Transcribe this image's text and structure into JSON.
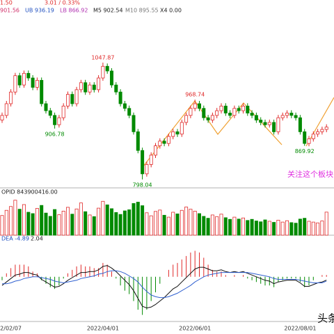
{
  "header": {
    "line1": [
      "1.50",
      "3.01 / 0.33%"
    ],
    "line2": [
      "901.56",
      "UB 936.19",
      "LB 866.92",
      "M5 902.54",
      "M10 895.55",
      "X4 0.00"
    ]
  },
  "chart_data": [
    {
      "type": "candlestick",
      "up_color": "#e02828",
      "down_color": "#008a00",
      "x": [
        null,
        null,
        "2/02/07",
        null,
        null,
        null,
        null,
        null,
        null,
        null,
        null,
        null,
        null,
        null,
        null,
        null,
        null,
        null,
        null,
        null,
        null,
        null,
        null,
        "2022/04/01",
        null,
        null,
        null,
        null,
        null,
        null,
        null,
        null,
        null,
        null,
        null,
        null,
        null,
        null,
        null,
        null,
        null,
        null,
        null,
        null,
        "2022/06/01",
        null,
        null,
        null,
        null,
        null,
        null,
        null,
        null,
        null,
        null,
        null,
        null,
        null,
        null,
        null,
        null,
        null,
        null,
        null,
        null,
        null,
        null,
        null,
        "2022/08/01",
        null,
        null,
        null,
        null,
        null,
        null
      ],
      "open": [
        925,
        935,
        960,
        985,
        1020,
        1000,
        1025,
        1015,
        995,
        1010,
        960,
        945,
        935,
        915,
        930,
        955,
        980,
        960,
        990,
        1005,
        985,
        1000,
        990,
        1015,
        1040,
        1030,
        1000,
        985,
        960,
        950,
        935,
        900,
        860,
        810,
        830,
        850,
        870,
        880,
        875,
        890,
        900,
        895,
        920,
        935,
        950,
        960,
        950,
        930,
        925,
        935,
        945,
        955,
        940,
        935,
        950,
        945,
        955,
        940,
        935,
        925,
        920,
        915,
        920,
        900,
        930,
        935,
        940,
        935,
        930,
        900,
        875,
        885,
        895,
        900,
        905
      ],
      "high": [
        941,
        966,
        991,
        1026,
        1026,
        1031,
        1031,
        1021,
        1016,
        1016,
        966,
        951,
        941,
        936,
        961,
        986,
        986,
        996,
        1011,
        1011,
        1006,
        1006,
        1021,
        1047.87,
        1046,
        1036,
        1006,
        991,
        966,
        956,
        941,
        906,
        866,
        836,
        856,
        876,
        886,
        886,
        896,
        906,
        906,
        926,
        941,
        956,
        968.74,
        966,
        956,
        936,
        941,
        951,
        961,
        961,
        946,
        956,
        956,
        961,
        961,
        946,
        941,
        931,
        926,
        926,
        926,
        936,
        941,
        946,
        946,
        941,
        936,
        906,
        891,
        901,
        906,
        911,
        916
      ],
      "low": [
        919,
        929,
        954,
        979,
        994,
        994,
        1009,
        989,
        989,
        954,
        939,
        929,
        906.78,
        909,
        924,
        949,
        954,
        954,
        984,
        979,
        979,
        984,
        984,
        1009,
        1024,
        994,
        979,
        954,
        944,
        929,
        894,
        854,
        798.04,
        804,
        824,
        844,
        864,
        869,
        869,
        884,
        889,
        889,
        914,
        929,
        944,
        944,
        924,
        919,
        919,
        929,
        939,
        934,
        929,
        929,
        939,
        939,
        934,
        929,
        919,
        914,
        909,
        909,
        894,
        894,
        924,
        929,
        929,
        924,
        894,
        869.92,
        869,
        879,
        889,
        894,
        899
      ],
      "close": [
        935,
        960,
        985,
        1020,
        1000,
        1025,
        1015,
        995,
        1010,
        960,
        945,
        935,
        915,
        930,
        955,
        980,
        960,
        990,
        1005,
        985,
        1000,
        990,
        1015,
        1040,
        1030,
        1000,
        985,
        960,
        950,
        935,
        900,
        860,
        810,
        830,
        850,
        870,
        880,
        875,
        890,
        900,
        895,
        920,
        935,
        950,
        960,
        950,
        930,
        925,
        935,
        945,
        955,
        940,
        935,
        950,
        945,
        955,
        940,
        935,
        925,
        920,
        915,
        920,
        900,
        930,
        935,
        940,
        935,
        930,
        900,
        875,
        885,
        895,
        900,
        905,
        910
      ],
      "ylim": [
        780,
        1152
      ],
      "annotations": [
        "1047.87",
        "906.78",
        "968.74",
        "869.92",
        "798.04"
      ],
      "note": "关注这个板块"
    },
    {
      "type": "volume",
      "title": "OPID 843900416.00",
      "ylim": [
        0,
        1400000000
      ],
      "values": [
        720000000.0,
        910000000.0,
        1050000000.0,
        1280000000.0,
        950000000.0,
        1120000000.0,
        840000000.0,
        790000000.0,
        980000000.0,
        1090000000.0,
        810000000.0,
        690000000.0,
        940000000.0,
        750000000.0,
        880000000.0,
        1020000000.0,
        770000000.0,
        960000000.0,
        1180000000.0,
        860000000.0,
        740000000.0,
        680000000.0,
        990000000.0,
        1240000000.0,
        1110000000.0,
        970000000.0,
        830000000.0,
        760000000.0,
        890000000.0,
        930000000.0,
        1160000000.0,
        1210000000.0,
        1080000000.0,
        820000000.0,
        710000000.0,
        870000000.0,
        920000000.0,
        730000000.0,
        660000000.0,
        840000000.0,
        780000000.0,
        910000000.0,
        1030000000.0,
        950000000.0,
        880000000.0,
        790000000.0,
        690000000.0,
        620000000.0,
        740000000.0,
        680000000.0,
        770000000.0,
        640000000.0,
        580000000.0,
        660000000.0,
        590000000.0,
        630000000.0,
        540000000.0,
        580000000.0,
        520000000.0,
        490000000.0,
        560000000.0,
        510000000.0,
        470000000.0,
        550000000.0,
        480000000.0,
        530000000.0,
        460000000.0,
        440000000.0,
        590000000.0,
        620000000.0,
        510000000.0,
        480000000.0,
        450000000.0,
        520000000.0,
        843900000.0
      ]
    },
    {
      "type": "macd",
      "labels": [
        "DEA -4.89",
        "2.04"
      ],
      "ylim": [
        -50,
        40
      ],
      "dif_color": "#111111",
      "dea_color": "#3060d0",
      "macd": [
        -4,
        4,
        10,
        14,
        14,
        14,
        12,
        6,
        4,
        -4,
        -8,
        -12,
        -14,
        -10,
        -2,
        4,
        8,
        12,
        14,
        12,
        12,
        10,
        10,
        16,
        14,
        6,
        -2,
        -10,
        -16,
        -20,
        -28,
        -38,
        -44,
        -38,
        -28,
        -18,
        -8,
        0,
        8,
        14,
        16,
        20,
        24,
        28,
        30,
        28,
        22,
        14,
        8,
        6,
        6,
        2,
        0,
        2,
        0,
        2,
        -2,
        -4,
        -6,
        -8,
        -10,
        -10,
        -12,
        -6,
        -4,
        -2,
        -2,
        -2,
        -6,
        -12,
        -10,
        -4,
        0,
        2,
        2.04
      ],
      "dif": [
        -10,
        -6,
        -2,
        2,
        3,
        5,
        5,
        3,
        2,
        -3,
        -6,
        -9,
        -12,
        -11,
        -8,
        -4,
        -1,
        2,
        5,
        5,
        6,
        6,
        8,
        12,
        13,
        10,
        6,
        1,
        -4,
        -9,
        -16,
        -25,
        -34,
        -36,
        -35,
        -32,
        -28,
        -24,
        -19,
        -14,
        -11,
        -6,
        -1,
        4,
        9,
        11,
        11,
        9,
        7,
        7,
        8,
        6,
        5,
        6,
        5,
        6,
        4,
        2,
        0,
        -2,
        -4,
        -5,
        -8,
        -6,
        -5,
        -4,
        -4,
        -4,
        -7,
        -11,
        -11,
        -9,
        -7,
        -6,
        -3.87
      ],
      "dea": [
        -8,
        -8,
        -7,
        -5,
        -4,
        -2,
        -1,
        0,
        0,
        -1,
        -2,
        -3,
        -5,
        -6,
        -7,
        -6,
        -5,
        -4,
        -2,
        -1,
        0,
        1,
        3,
        4,
        6,
        7,
        7,
        6,
        4,
        1,
        -2,
        -6,
        -12,
        -17,
        -21,
        -23,
        -24,
        -24,
        -23,
        -21,
        -19,
        -16,
        -13,
        -10,
        -6,
        -3,
        0,
        2,
        3,
        4,
        5,
        5,
        5,
        5,
        5,
        5,
        5,
        4,
        3,
        2,
        1,
        0,
        -2,
        -3,
        -3,
        -3,
        -3,
        -3,
        -4,
        -5,
        -6,
        -7,
        -7,
        -7,
        -4.89
      ]
    }
  ],
  "watermark": "头条"
}
